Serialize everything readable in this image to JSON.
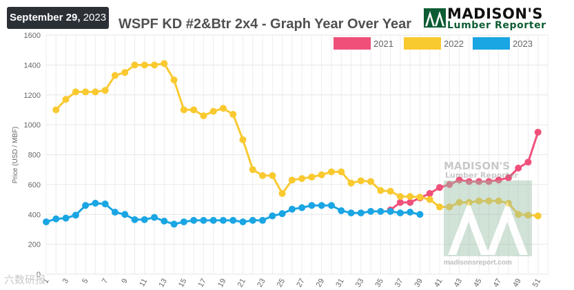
{
  "header": {
    "date_month_day": "September 29,",
    "date_year": " 2023",
    "logo_brand": "MADISON'S",
    "logo_sub": "Lumber Reporter"
  },
  "watermark": {
    "brand": "MADISON'S",
    "sub": "Lumber Reporter",
    "url": "madisonsreport.com"
  },
  "bottom_mark": "六数研报",
  "colors": {
    "2021": "#ef507a",
    "2022": "#f9c930",
    "2023": "#1aa5e3"
  },
  "chart_data": {
    "type": "line",
    "title": "WSPF KD #2&Btr 2x4 - Graph Year Over Year",
    "xlabel": "",
    "ylabel": "Price (USD / MBF)",
    "ylim": [
      0,
      1600
    ],
    "yticks": [
      0,
      200,
      400,
      600,
      800,
      1000,
      1200,
      1400,
      1600
    ],
    "xlim": [
      1,
      52
    ],
    "xticks": [
      1,
      3,
      5,
      7,
      9,
      11,
      13,
      15,
      17,
      19,
      21,
      23,
      25,
      27,
      29,
      31,
      33,
      35,
      37,
      39,
      41,
      43,
      45,
      47,
      49,
      51
    ],
    "grid": true,
    "legend_position": "top-right",
    "series": [
      {
        "name": "2021",
        "x": [
          36,
          37,
          38,
          39,
          40,
          41,
          42,
          43,
          44,
          45,
          46,
          47,
          48,
          49,
          50,
          51
        ],
        "values": [
          430,
          480,
          480,
          510,
          540,
          580,
          600,
          630,
          620,
          620,
          620,
          630,
          645,
          710,
          750,
          950
        ]
      },
      {
        "name": "2022",
        "x": [
          2,
          3,
          4,
          5,
          6,
          7,
          8,
          9,
          10,
          11,
          12,
          13,
          14,
          15,
          16,
          17,
          18,
          19,
          20,
          21,
          22,
          23,
          24,
          25,
          26,
          27,
          28,
          29,
          30,
          31,
          32,
          33,
          34,
          35,
          36,
          37,
          38,
          39,
          40,
          41,
          42,
          43,
          44,
          45,
          46,
          47,
          48,
          49,
          50,
          51
        ],
        "values": [
          1100,
          1170,
          1220,
          1220,
          1220,
          1230,
          1330,
          1350,
          1400,
          1400,
          1400,
          1410,
          1300,
          1100,
          1100,
          1060,
          1090,
          1110,
          1070,
          900,
          700,
          660,
          660,
          540,
          630,
          640,
          650,
          665,
          685,
          685,
          610,
          625,
          620,
          560,
          555,
          520,
          520,
          515,
          500,
          450,
          450,
          480,
          480,
          490,
          490,
          490,
          475,
          400,
          395,
          390
        ]
      },
      {
        "name": "2023",
        "x": [
          1,
          2,
          3,
          4,
          5,
          6,
          7,
          8,
          9,
          10,
          11,
          12,
          13,
          14,
          15,
          16,
          17,
          18,
          19,
          20,
          21,
          22,
          23,
          24,
          25,
          26,
          27,
          28,
          29,
          30,
          31,
          32,
          33,
          34,
          35,
          36,
          37,
          38,
          39
        ],
        "values": [
          350,
          370,
          375,
          395,
          460,
          475,
          470,
          415,
          400,
          365,
          365,
          380,
          355,
          335,
          350,
          360,
          360,
          360,
          360,
          360,
          350,
          360,
          360,
          390,
          405,
          435,
          445,
          460,
          460,
          460,
          425,
          410,
          410,
          420,
          420,
          420,
          410,
          415,
          400
        ]
      }
    ]
  }
}
